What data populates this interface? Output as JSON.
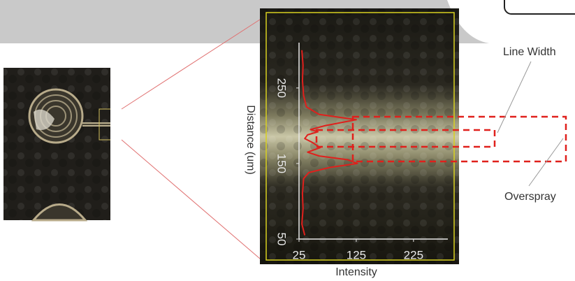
{
  "chart_data": {
    "type": "line",
    "x_label": "Intensity",
    "y_label": "Distance (um)",
    "x": [
      30,
      32,
      31,
      33,
      38,
      60,
      125,
      70,
      45,
      58,
      40,
      35,
      48,
      62,
      40,
      60,
      110,
      127,
      80,
      42,
      33,
      31,
      32,
      30,
      35
    ],
    "values": [
      300,
      280,
      260,
      240,
      225,
      215,
      208,
      200,
      195,
      192,
      188,
      183,
      178,
      171,
      165,
      160,
      155,
      150,
      145,
      138,
      130,
      110,
      90,
      70,
      55
    ],
    "color": "#e0201c",
    "xlim": [
      25,
      285
    ],
    "ylim": [
      50,
      310
    ],
    "xticks": [
      25,
      125,
      225
    ],
    "yticks": [
      50,
      150,
      250
    ],
    "annotations": [
      "Line Width",
      "Overspray"
    ]
  }
}
